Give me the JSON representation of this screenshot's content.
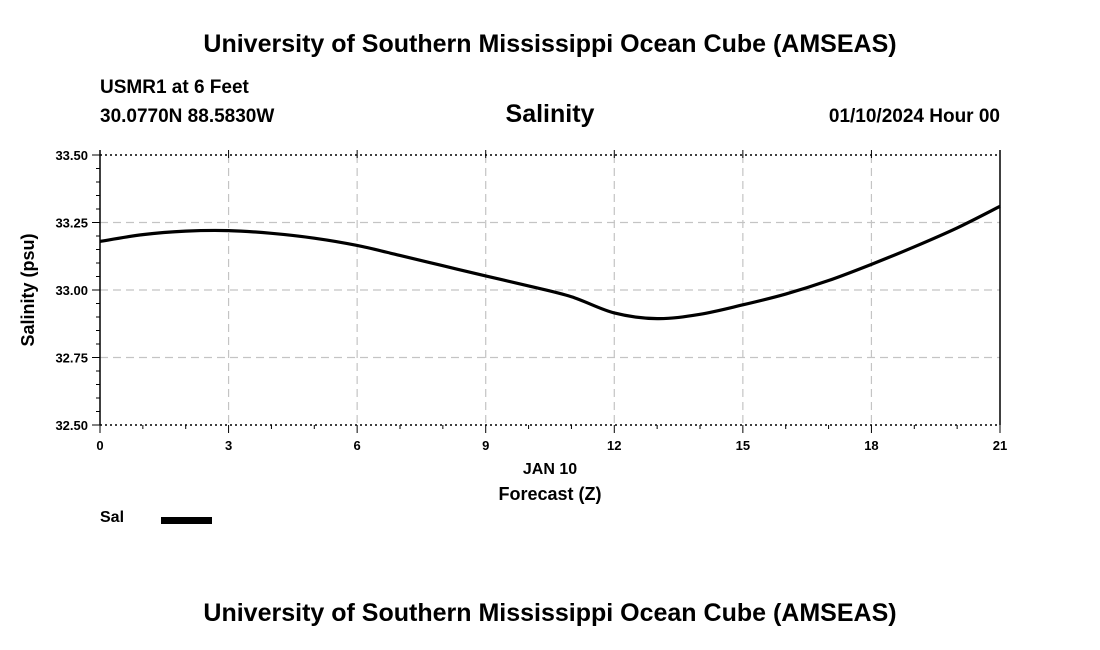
{
  "header": {
    "title": "University of Southern Mississippi Ocean Cube (AMSEAS)",
    "station": "USMR1 at 6 Feet",
    "coords": "30.0770N  88.5830W",
    "datetime": "01/10/2024 Hour 00"
  },
  "footer": {
    "title": "University of Southern Mississippi Ocean Cube (AMSEAS)"
  },
  "chart_data": {
    "type": "line",
    "title": "Salinity",
    "xlabel": "Forecast (Z)",
    "xsublabel": "JAN 10",
    "ylabel": "Salinity (psu)",
    "xlim": [
      0,
      21
    ],
    "ylim": [
      32.5,
      33.5
    ],
    "xticks": [
      0,
      3,
      6,
      9,
      12,
      15,
      18,
      21
    ],
    "yticks": [
      32.5,
      32.75,
      33.0,
      33.25,
      33.5
    ],
    "ytick_labels": [
      "32.50",
      "32.75",
      "33.00",
      "33.25",
      "33.50"
    ],
    "grid": true,
    "series": [
      {
        "name": "Sal",
        "color": "#000000",
        "x": [
          0,
          1,
          2,
          3,
          4,
          5,
          6,
          7,
          8,
          9,
          10,
          11,
          12,
          13,
          14,
          15,
          16,
          17,
          18,
          19,
          20,
          21
        ],
        "values": [
          33.18,
          33.205,
          33.218,
          33.22,
          33.21,
          33.192,
          33.165,
          33.128,
          33.09,
          33.052,
          33.015,
          32.975,
          32.915,
          32.894,
          32.91,
          32.945,
          32.985,
          33.035,
          33.095,
          33.16,
          33.23,
          33.31
        ]
      }
    ],
    "legend": [
      {
        "label": "Sal",
        "color": "#000000"
      }
    ]
  }
}
